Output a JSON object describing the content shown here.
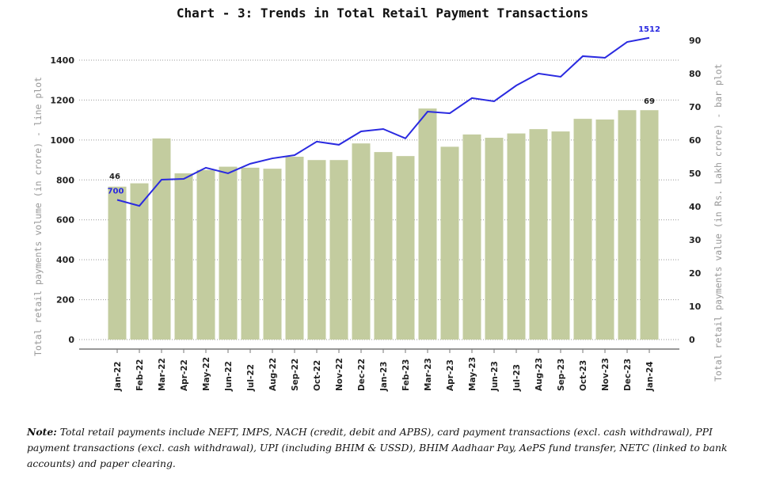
{
  "chart_data": {
    "type": "bar+line",
    "title": "Chart - 3: Trends in Total Retail Payment Transactions",
    "ylabel_left": "Total retail payments volume (in crore) - line plot",
    "ylabel_right": "Total retail payments value (in Rs. Lakh crore) - bar plot",
    "ylim_left": [
      0,
      1400
    ],
    "yticks_left": [
      0,
      200,
      400,
      600,
      800,
      1000,
      1200,
      1400
    ],
    "ylim_right": [
      0,
      90
    ],
    "yticks_right": [
      0,
      10,
      20,
      30,
      40,
      50,
      60,
      70,
      80,
      90
    ],
    "grid": true,
    "categories": [
      "Jan-22",
      "Feb-22",
      "Mar-22",
      "Apr-22",
      "May-22",
      "Jun-22",
      "Jul-22",
      "Aug-22",
      "Sep-22",
      "Oct-22",
      "Nov-22",
      "Dec-22",
      "Jan-23",
      "Feb-23",
      "Mar-23",
      "Apr-23",
      "May-23",
      "Jun-23",
      "Jul-23",
      "Aug-23",
      "Sep-23",
      "Oct-23",
      "Nov-23",
      "Dec-23",
      "Jan-24"
    ],
    "series": [
      {
        "type": "bar",
        "axis": "right",
        "color": "#c3cc9f",
        "values": [
          46,
          47,
          60.5,
          50,
          51,
          52,
          51.7,
          51.4,
          55,
          54,
          54,
          59,
          56.4,
          55.2,
          69.5,
          58,
          61.7,
          60.7,
          62,
          63.3,
          62.6,
          66.4,
          66.2,
          69,
          69
        ]
      },
      {
        "type": "line",
        "axis": "left",
        "color": "#2a2ae0",
        "values": [
          700,
          670,
          801,
          805,
          861,
          833,
          881,
          908,
          924,
          992,
          976,
          1043,
          1055,
          1008,
          1142,
          1134,
          1210,
          1194,
          1273,
          1333,
          1317,
          1420,
          1412,
          1491,
          1512
        ]
      }
    ],
    "data_labels": {
      "bar_first": "46",
      "bar_last": "69",
      "line_first": "700",
      "line_last": "1512"
    }
  },
  "note": {
    "label": "Note:",
    "text": " Total retail payments include NEFT, IMPS, NACH (credit, debit and APBS), card payment transactions (excl. cash withdrawal), PPI payment transactions (excl. cash withdrawal), UPI (including BHIM & USSD), BHIM Aadhaar Pay, AePS fund transfer, NETC (linked to bank accounts) and paper clearing."
  }
}
